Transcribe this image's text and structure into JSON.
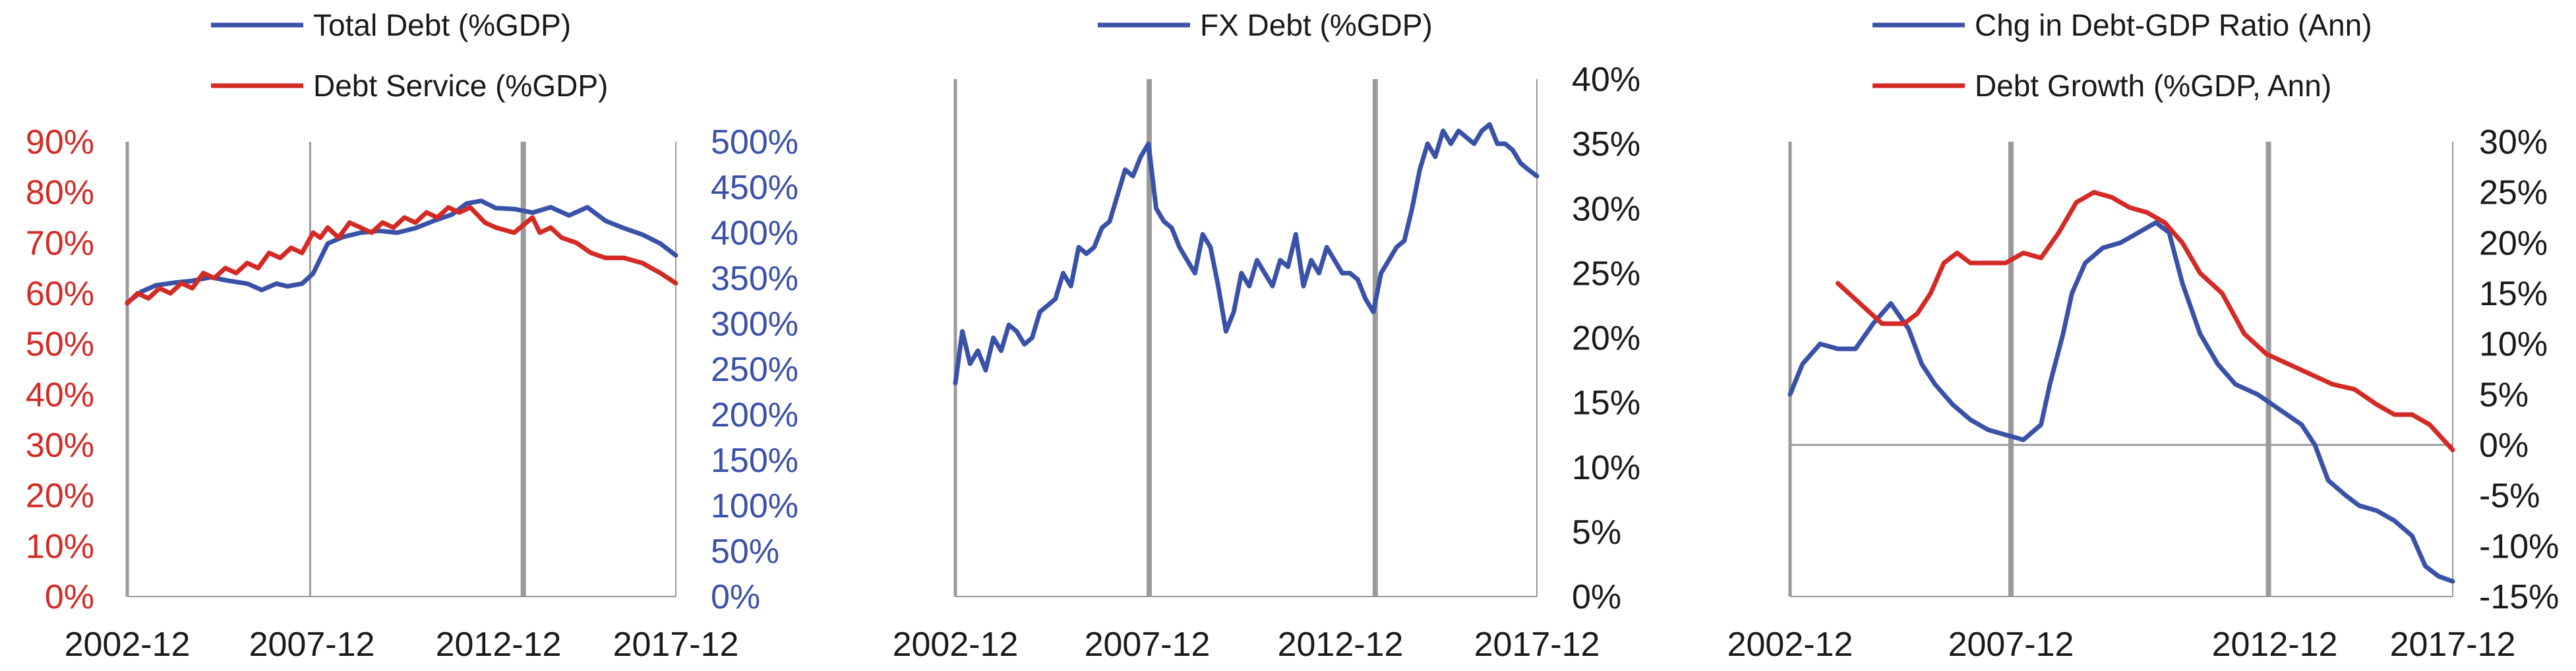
{
  "colors": {
    "blue": "#3a51a8",
    "red": "#d42a25",
    "axis_gray": "#9a9a9a",
    "text": "#1a1a1a"
  },
  "chart_data": [
    {
      "type": "line",
      "legend": [
        "Total Debt (%GDP)",
        "Debt Service (%GDP)"
      ],
      "x_ticks": [
        "2002-12",
        "2007-12",
        "2012-12",
        "2017-12"
      ],
      "x_range": [
        2002.92,
        2017.92
      ],
      "vlines": [
        2007.92,
        2013.75
      ],
      "left_axis": {
        "ticks": [
          "90%",
          "80%",
          "70%",
          "60%",
          "50%",
          "40%",
          "30%",
          "20%",
          "10%",
          "0%"
        ],
        "range": [
          0,
          90
        ],
        "color": "#d42a25"
      },
      "right_axis": {
        "ticks": [
          "500%",
          "450%",
          "400%",
          "350%",
          "300%",
          "250%",
          "200%",
          "150%",
          "100%",
          "50%",
          "0%"
        ],
        "range": [
          0,
          500
        ],
        "color": "#3a51a8"
      },
      "series": [
        {
          "name": "Total Debt (%GDP)",
          "color": "#3a51a8",
          "axis": "right",
          "x": [
            2002.92,
            2003.3,
            2003.7,
            2004.2,
            2004.7,
            2005.2,
            2005.7,
            2006.2,
            2006.6,
            2007.0,
            2007.3,
            2007.7,
            2008.0,
            2008.4,
            2008.8,
            2009.3,
            2009.8,
            2010.3,
            2010.8,
            2011.3,
            2011.8,
            2012.2,
            2012.6,
            2013.0,
            2013.5,
            2014.0,
            2014.5,
            2015.0,
            2015.5,
            2016.0,
            2016.5,
            2017.0,
            2017.5,
            2017.92
          ],
          "y": [
            323,
            335,
            342,
            345,
            347,
            351,
            347,
            344,
            337,
            344,
            341,
            344,
            355,
            388,
            395,
            400,
            402,
            400,
            405,
            413,
            420,
            432,
            435,
            427,
            426,
            422,
            428,
            419,
            428,
            413,
            405,
            398,
            388,
            375
          ]
        },
        {
          "name": "Debt Service (%GDP)",
          "color": "#d42a25",
          "axis": "left",
          "x": [
            2002.92,
            2003.2,
            2003.5,
            2003.8,
            2004.1,
            2004.4,
            2004.7,
            2005.0,
            2005.3,
            2005.6,
            2005.9,
            2006.2,
            2006.5,
            2006.8,
            2007.1,
            2007.4,
            2007.7,
            2008.0,
            2008.2,
            2008.4,
            2008.7,
            2009.0,
            2009.3,
            2009.6,
            2009.9,
            2010.2,
            2010.5,
            2010.8,
            2011.1,
            2011.4,
            2011.7,
            2012.0,
            2012.3,
            2012.7,
            2013.0,
            2013.5,
            2014.0,
            2014.2,
            2014.5,
            2014.8,
            2015.2,
            2015.6,
            2016.0,
            2016.5,
            2017.0,
            2017.5,
            2017.92
          ],
          "y": [
            58,
            60,
            59,
            61,
            60,
            62,
            61,
            64,
            63,
            65,
            64,
            66,
            65,
            68,
            67,
            69,
            68,
            72,
            71,
            73,
            71,
            74,
            73,
            72,
            74,
            73,
            75,
            74,
            76,
            75,
            77,
            76,
            77,
            74,
            73,
            72,
            75,
            72,
            73,
            71,
            70,
            68,
            67,
            67,
            66,
            64,
            62
          ]
        }
      ]
    },
    {
      "type": "line",
      "legend": [
        "FX Debt (%GDP)"
      ],
      "x_ticks": [
        "2002-12",
        "2007-12",
        "2012-12",
        "2017-12"
      ],
      "x_range": [
        2002.92,
        2017.92
      ],
      "vlines": [
        2007.92,
        2013.75
      ],
      "right_axis": {
        "ticks": [
          "40%",
          "35%",
          "30%",
          "25%",
          "20%",
          "15%",
          "10%",
          "5%",
          "0%"
        ],
        "range": [
          0,
          40
        ],
        "color": "#1a1a1a"
      },
      "series": [
        {
          "name": "FX Debt (%GDP)",
          "color": "#3a51a8",
          "axis": "right",
          "x": [
            2002.92,
            2003.1,
            2003.3,
            2003.5,
            2003.7,
            2003.9,
            2004.1,
            2004.3,
            2004.5,
            2004.7,
            2004.9,
            2005.1,
            2005.3,
            2005.5,
            2005.7,
            2005.9,
            2006.1,
            2006.3,
            2006.5,
            2006.7,
            2006.9,
            2007.1,
            2007.3,
            2007.5,
            2007.7,
            2007.9,
            2008.1,
            2008.3,
            2008.5,
            2008.7,
            2008.9,
            2009.1,
            2009.3,
            2009.5,
            2009.7,
            2009.9,
            2010.1,
            2010.3,
            2010.5,
            2010.7,
            2010.9,
            2011.1,
            2011.3,
            2011.5,
            2011.7,
            2011.9,
            2012.1,
            2012.3,
            2012.5,
            2012.7,
            2012.9,
            2013.1,
            2013.3,
            2013.5,
            2013.7,
            2013.9,
            2014.1,
            2014.3,
            2014.5,
            2014.7,
            2014.9,
            2015.1,
            2015.3,
            2015.5,
            2015.7,
            2015.9,
            2016.1,
            2016.3,
            2016.5,
            2016.7,
            2016.9,
            2017.1,
            2017.3,
            2017.5,
            2017.7,
            2017.92
          ],
          "y": [
            16.5,
            20.5,
            18,
            19,
            17.5,
            20,
            19,
            21,
            20.5,
            19.5,
            20,
            22,
            22.5,
            23,
            25,
            24,
            27,
            26.5,
            27,
            28.5,
            29,
            31,
            33,
            32.5,
            34,
            35,
            30,
            29,
            28.5,
            27,
            26,
            25,
            28,
            27,
            24,
            20.5,
            22,
            25,
            24,
            26,
            25,
            24,
            26,
            25.5,
            28,
            24,
            26,
            25,
            27,
            26,
            25,
            25,
            24.5,
            23,
            22,
            25,
            26,
            27,
            27.5,
            30,
            33,
            35,
            34,
            36,
            35,
            36,
            35.5,
            35,
            36,
            36.5,
            35,
            35,
            34.5,
            33.5,
            33,
            32.5
          ]
        }
      ]
    },
    {
      "type": "line",
      "legend": [
        "Chg in Debt-GDP Ratio (Ann)",
        "Debt Growth (%GDP, Ann)"
      ],
      "x_ticks": [
        "2002-12",
        "2007-12",
        "2012-12",
        "2017-12"
      ],
      "x_range": [
        2002.92,
        2017.92
      ],
      "vlines": [
        2007.92,
        2013.75
      ],
      "right_axis": {
        "ticks": [
          "30%",
          "25%",
          "20%",
          "15%",
          "10%",
          "5%",
          "0%",
          "-5%",
          "-10%",
          "-15%"
        ],
        "range": [
          -15,
          30
        ],
        "color": "#1a1a1a"
      },
      "series": [
        {
          "name": "Chg in Debt-GDP Ratio (Ann)",
          "color": "#3a51a8",
          "axis": "right",
          "x": [
            2002.92,
            2003.2,
            2003.6,
            2004.0,
            2004.4,
            2004.8,
            2005.2,
            2005.6,
            2005.9,
            2006.2,
            2006.6,
            2007.0,
            2007.4,
            2007.8,
            2008.2,
            2008.6,
            2008.8,
            2009.1,
            2009.3,
            2009.6,
            2010.0,
            2010.4,
            2010.8,
            2011.2,
            2011.5,
            2011.8,
            2012.2,
            2012.6,
            2013.0,
            2013.5,
            2014.0,
            2014.5,
            2014.8,
            2015.1,
            2015.5,
            2015.8,
            2016.2,
            2016.6,
            2017.0,
            2017.3,
            2017.6,
            2017.92
          ],
          "y": [
            5,
            8,
            10,
            9.5,
            9.5,
            12,
            14,
            11.5,
            8,
            6,
            4,
            2.5,
            1.5,
            1,
            0.5,
            2,
            6,
            11,
            15,
            18,
            19.5,
            20,
            21,
            22,
            21,
            16,
            11,
            8,
            6,
            5,
            3.5,
            2,
            0,
            -3.5,
            -5,
            -6,
            -6.5,
            -7.5,
            -9,
            -12,
            -13,
            -13.5
          ]
        },
        {
          "name": "Debt Growth (%GDP, Ann)",
          "color": "#d42a25",
          "axis": "right",
          "x": [
            2004.0,
            2004.5,
            2005.0,
            2005.5,
            2005.8,
            2006.1,
            2006.4,
            2006.7,
            2007.0,
            2007.4,
            2007.8,
            2008.2,
            2008.6,
            2009.0,
            2009.4,
            2009.8,
            2010.2,
            2010.6,
            2011.0,
            2011.4,
            2011.8,
            2012.2,
            2012.7,
            2013.2,
            2013.7,
            2014.2,
            2014.7,
            2015.2,
            2015.7,
            2016.2,
            2016.6,
            2017.0,
            2017.4,
            2017.92
          ],
          "y": [
            16,
            14,
            12,
            12,
            13,
            15,
            18,
            19,
            18,
            18,
            18,
            19,
            18.5,
            21,
            24,
            25,
            24.5,
            23.5,
            23,
            22,
            20,
            17,
            15,
            11,
            9,
            8,
            7,
            6,
            5.5,
            4,
            3,
            3,
            2,
            -0.5
          ]
        }
      ]
    }
  ]
}
